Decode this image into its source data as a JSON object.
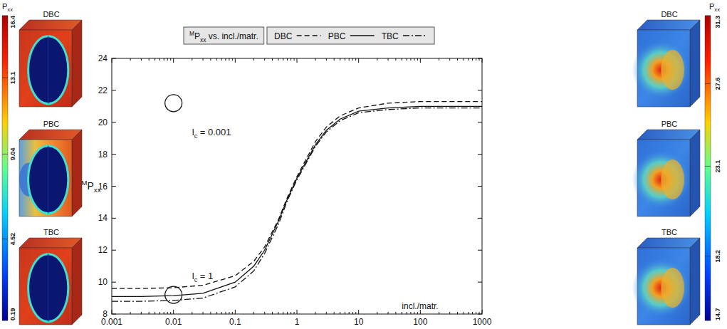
{
  "chart_data": {
    "type": "line",
    "title": "MPxx vs. incl./matr.",
    "xlabel": "incl./matr.",
    "ylabel": "MPxx",
    "log": "x",
    "x": [
      0.001,
      0.003,
      0.01,
      0.03,
      0.1,
      0.2,
      0.3,
      0.5,
      0.7,
      1,
      2,
      3,
      5,
      10,
      30,
      100,
      1000
    ],
    "xlim": [
      0.001,
      1000
    ],
    "xticks": [
      0.001,
      0.01,
      0.1,
      1,
      10,
      100,
      1000
    ],
    "ylim": [
      8,
      24
    ],
    "yticks": [
      8,
      10,
      12,
      14,
      16,
      18,
      20,
      22,
      24
    ],
    "legend": "top",
    "series": [
      {
        "name": "DBC",
        "color": "#111111",
        "line_style": "dashed",
        "values": [
          9.6,
          9.6,
          9.65,
          9.8,
          10.4,
          11.3,
          12.2,
          13.9,
          15.3,
          16.6,
          18.8,
          19.7,
          20.4,
          20.9,
          21.2,
          21.3,
          21.3
        ]
      },
      {
        "name": "PBC",
        "color": "#111111",
        "line_style": "solid",
        "values": [
          9.1,
          9.1,
          9.15,
          9.3,
          10.0,
          11.0,
          12.0,
          13.8,
          15.2,
          16.5,
          18.6,
          19.5,
          20.2,
          20.7,
          20.9,
          21.0,
          21.0
        ]
      },
      {
        "name": "TBC",
        "color": "#111111",
        "line_style": "dashdot",
        "values": [
          8.8,
          8.8,
          8.85,
          9.0,
          9.7,
          10.7,
          11.8,
          13.6,
          15.1,
          16.4,
          18.5,
          19.4,
          20.1,
          20.6,
          20.8,
          20.9,
          20.9
        ]
      }
    ],
    "annotations": [
      {
        "text": "lc = 0.001",
        "x": 0.02,
        "y": 19.2
      },
      {
        "text": "lc = 1",
        "x": 0.02,
        "y": 10.2
      }
    ],
    "highlights": [
      {
        "x": 0.01,
        "y": 21.2
      },
      {
        "x": 0.01,
        "y": 9.2
      }
    ]
  },
  "panels": [
    {
      "colorbar": {
        "label": "Pxx",
        "range": [
          0.19,
          16.4
        ],
        "ticks": [
          0.19,
          4.52,
          9.04,
          13.1,
          16.4
        ]
      },
      "views": [
        "DBC",
        "PBC",
        "TBC"
      ]
    },
    {
      "colorbar": {
        "label": "Pxx",
        "range": [
          14.7,
          31.3
        ],
        "ticks": [
          14.7,
          18.2,
          23.1,
          27.6,
          31.3
        ]
      },
      "views": [
        "DBC",
        "PBC",
        "TBC"
      ]
    }
  ]
}
